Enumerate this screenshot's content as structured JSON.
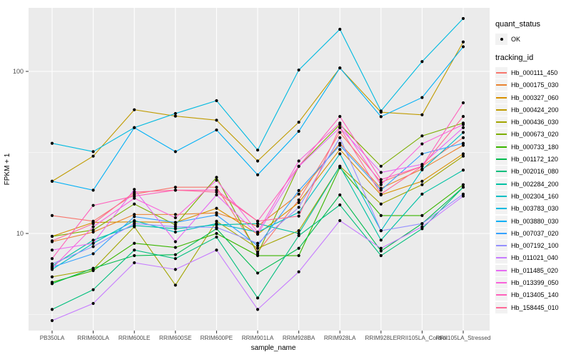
{
  "figure": {
    "background": "#FFFFFF",
    "panel_bg": "#EBEBEB",
    "grid_color": "#FFFFFF",
    "axis_text_color": "#4D4D4D",
    "point_color": "#000000",
    "xlabel": "sample_name",
    "ylabel": "FPKM + 1"
  },
  "legend": {
    "shape_title": "quant_status",
    "shape_items": [
      {
        "label": "OK"
      }
    ],
    "color_title": "tracking_id"
  },
  "chart_data": {
    "type": "line",
    "yscale": "log10",
    "xlabel": "sample_name",
    "ylabel": "FPKM + 1",
    "ylim": [
      2.5,
      250
    ],
    "y_ticks": [
      10,
      100
    ],
    "y_minor_ticks": [
      3.1623,
      31.623
    ],
    "grid": true,
    "legend_position": "right",
    "point_shape": "filled-circle",
    "point_color": "#000000",
    "x_categories": [
      "PB350LA",
      "RRIM600LA",
      "RRIM600LE",
      "RRIM600SE",
      "RRIM600PE",
      "RRIM901LA",
      "RRIM928BA",
      "RRIM928LA",
      "RRIM928LE",
      "RRII105LA_Control",
      "RRII105LA_Stressed"
    ],
    "series": [
      {
        "name": "Hb_000111_450",
        "color": "#F8766D",
        "values": [
          12.9,
          11.9,
          17.5,
          19.3,
          19.3,
          7.7,
          16.1,
          42,
          20.7,
          26,
          39
        ]
      },
      {
        "name": "Hb_000175_030",
        "color": "#EA8331",
        "values": [
          8.9,
          10.2,
          13.1,
          13.1,
          13.4,
          11.1,
          17.5,
          36,
          19,
          25,
          35
        ]
      },
      {
        "name": "Hb_000327_060",
        "color": "#D89000",
        "values": [
          9.6,
          11.7,
          11.8,
          11.7,
          14.3,
          9.9,
          15.5,
          33,
          17.3,
          21,
          31
        ]
      },
      {
        "name": "Hb_000424_200",
        "color": "#C09B00",
        "values": [
          21,
          30,
          58,
          53,
          50,
          28,
          48.6,
          105,
          56,
          54,
          152
        ]
      },
      {
        "name": "Hb_000436_030",
        "color": "#A3A500",
        "values": [
          5.4,
          6.0,
          11.0,
          4.8,
          11.9,
          8.1,
          10.4,
          26,
          15.2,
          20,
          30
        ]
      },
      {
        "name": "Hb_000673_020",
        "color": "#7CAE00",
        "values": [
          9.6,
          10.5,
          15.2,
          11.3,
          22.2,
          7.5,
          26,
          47,
          26,
          40,
          48
        ]
      },
      {
        "name": "Hb_000733_180",
        "color": "#39B600",
        "values": [
          5.0,
          5.9,
          8.7,
          8.2,
          10.0,
          7.3,
          7.3,
          25.5,
          12.9,
          12.9,
          20
        ]
      },
      {
        "name": "Hb_001172_120",
        "color": "#00BB4E",
        "values": [
          4.9,
          6.1,
          7.3,
          7.4,
          10.7,
          5.7,
          8.1,
          17.3,
          7.8,
          11.5,
          19.3
        ]
      },
      {
        "name": "Hb_002016_080",
        "color": "#00BF7D",
        "values": [
          3.4,
          4.5,
          7.9,
          7.0,
          9.5,
          4.0,
          9.7,
          15,
          7.3,
          10.7,
          19.3
        ]
      },
      {
        "name": "Hb_002284_200",
        "color": "#00C1A3",
        "values": [
          6.3,
          9.1,
          11.2,
          10.7,
          11.3,
          11.5,
          10.0,
          26,
          9.1,
          17.5,
          24.6
        ]
      },
      {
        "name": "Hb_002304_160",
        "color": "#00BFC4",
        "values": [
          6.0,
          8.7,
          12.0,
          10.2,
          11.5,
          10.2,
          13.5,
          31,
          10.4,
          24.7,
          42
        ]
      },
      {
        "name": "Hb_003783_030",
        "color": "#00BAE0",
        "values": [
          36,
          32,
          45,
          55,
          66,
          32.7,
          102,
          182,
          57,
          115,
          212
        ]
      },
      {
        "name": "Hb_003880_030",
        "color": "#00B0F6",
        "values": [
          21,
          18.5,
          45,
          32,
          43.5,
          23,
          42.7,
          105,
          52.6,
          69,
          142
        ]
      },
      {
        "name": "Hb_007037_020",
        "color": "#35A2FF",
        "values": [
          6.2,
          7.5,
          12.7,
          11.7,
          13.0,
          8.4,
          18.4,
          35,
          18.5,
          31,
          36
        ]
      },
      {
        "name": "Hb_007192_100",
        "color": "#9590FF",
        "values": [
          6.5,
          8.3,
          11.5,
          11.0,
          10.9,
          8.7,
          14.5,
          39,
          10.4,
          11.5,
          17.5
        ]
      },
      {
        "name": "Hb_011021_040",
        "color": "#C77CFF",
        "values": [
          2.9,
          3.7,
          6.6,
          6.0,
          7.9,
          3.4,
          5.8,
          12,
          8.1,
          11,
          17
        ]
      },
      {
        "name": "Hb_011485_020",
        "color": "#E76BF3",
        "values": [
          7.9,
          8.7,
          18.7,
          8.9,
          17.3,
          9.9,
          25.9,
          45,
          23.8,
          26.7,
          45
        ]
      },
      {
        "name": "Hb_013399_050",
        "color": "#FA62DB",
        "values": [
          6.1,
          11.0,
          16.5,
          12.5,
          21.3,
          10.2,
          28,
          48,
          20,
          35.7,
          47
        ]
      },
      {
        "name": "Hb_013405_140",
        "color": "#FF62BC",
        "values": [
          7.0,
          14.9,
          17.0,
          18.5,
          18.5,
          11.9,
          26,
          52.7,
          21.5,
          26,
          64
        ]
      },
      {
        "name": "Hb_158445_010",
        "color": "#FF6A98",
        "values": [
          9.0,
          11.5,
          18.0,
          18.5,
          18.0,
          11.9,
          12.8,
          45,
          17.5,
          26,
          52.7
        ]
      }
    ]
  }
}
